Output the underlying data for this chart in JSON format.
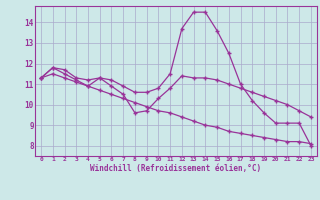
{
  "background_color": "#cde8e8",
  "grid_color": "#aaaacc",
  "line_color": "#993399",
  "marker_color": "#cc44cc",
  "xlabel": "Windchill (Refroidissement éolien,°C)",
  "x_ticks": [
    0,
    1,
    2,
    3,
    4,
    5,
    6,
    7,
    8,
    9,
    10,
    11,
    12,
    13,
    14,
    15,
    16,
    17,
    18,
    19,
    20,
    21,
    22,
    23
  ],
  "ylim": [
    7.5,
    14.8
  ],
  "yticks": [
    8,
    9,
    10,
    11,
    12,
    13,
    14
  ],
  "series": [
    [
      11.3,
      11.8,
      11.7,
      11.3,
      11.2,
      11.3,
      11.2,
      10.9,
      10.6,
      10.6,
      10.8,
      11.5,
      13.7,
      14.5,
      14.5,
      13.6,
      12.5,
      11.0,
      10.2,
      9.6,
      9.1,
      9.1,
      9.1,
      8.0
    ],
    [
      11.3,
      11.8,
      11.5,
      11.2,
      10.9,
      11.3,
      10.9,
      10.5,
      9.6,
      9.7,
      10.3,
      10.8,
      11.4,
      11.3,
      11.3,
      11.2,
      11.0,
      10.8,
      10.6,
      10.4,
      10.2,
      10.0,
      9.7,
      9.4
    ],
    [
      11.3,
      11.5,
      11.3,
      11.1,
      10.9,
      10.7,
      10.5,
      10.3,
      10.1,
      9.9,
      9.7,
      9.6,
      9.4,
      9.2,
      9.0,
      8.9,
      8.7,
      8.6,
      8.5,
      8.4,
      8.3,
      8.2,
      8.2,
      8.1
    ]
  ],
  "figsize": [
    3.2,
    2.0
  ],
  "dpi": 100
}
